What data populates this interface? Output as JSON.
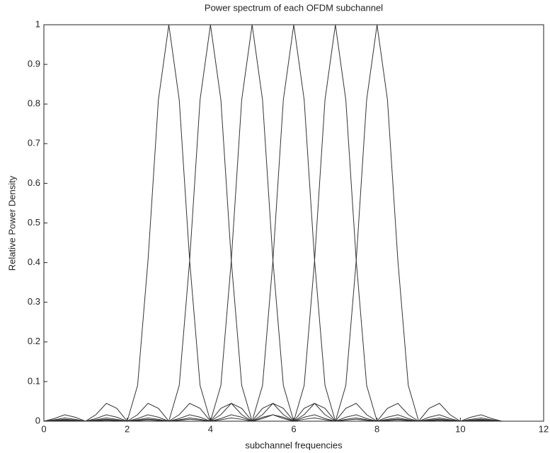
{
  "chart_data": {
    "type": "line",
    "title": "Power spectrum of each OFDM subchannel",
    "xlabel": "subchannel frequencies",
    "ylabel": "Relative Power Density",
    "x": [
      0,
      0.25,
      0.5,
      0.75,
      1,
      1.25,
      1.5,
      1.75,
      2,
      2.25,
      2.5,
      2.75,
      3,
      3.25,
      3.5,
      3.75,
      4,
      4.25,
      4.5,
      4.75,
      5,
      5.25,
      5.5,
      5.75,
      6,
      6.25,
      6.5,
      6.75,
      7,
      7.25,
      7.5,
      7.75,
      8,
      8.25,
      8.5,
      8.75,
      9,
      9.25,
      9.5,
      9.75,
      10,
      10.25,
      10.5,
      10.75,
      11
    ],
    "series": [
      {
        "color": "#333333",
        "values": [
          0,
          0.0067,
          0.0162,
          0.01,
          0,
          0.0165,
          0.045,
          0.0324,
          0,
          0.0901,
          0.4053,
          0.8106,
          1,
          0.8106,
          0.4053,
          0.0901,
          0,
          0.0324,
          0.045,
          0.0165,
          0,
          0.01,
          0.0162,
          0.0067,
          0,
          0.0048,
          0.0083,
          0.0036,
          0,
          0.0028,
          0.005,
          0.0022,
          0,
          0.0018,
          0.0033,
          0.0015,
          0,
          0.0013,
          0.0024,
          0.0011,
          0,
          0.001,
          0.0018,
          0.0008,
          0
        ]
      },
      {
        "color": "#333333",
        "values": [
          0,
          0.0036,
          0.0083,
          0.0048,
          0,
          0.0067,
          0.0162,
          0.01,
          0,
          0.0165,
          0.045,
          0.0324,
          0,
          0.0901,
          0.4053,
          0.8106,
          1,
          0.8106,
          0.4053,
          0.0901,
          0,
          0.0324,
          0.045,
          0.0165,
          0,
          0.01,
          0.0162,
          0.0067,
          0,
          0.0048,
          0.0083,
          0.0036,
          0,
          0.0028,
          0.005,
          0.0022,
          0,
          0.0018,
          0.0033,
          0.0015,
          0,
          0.0013,
          0.0024,
          0.0011,
          0
        ]
      },
      {
        "color": "#333333",
        "values": [
          0,
          0.0022,
          0.005,
          0.0028,
          0,
          0.0036,
          0.0083,
          0.0048,
          0,
          0.0067,
          0.0162,
          0.01,
          0,
          0.0165,
          0.045,
          0.0324,
          0,
          0.0901,
          0.4053,
          0.8106,
          1,
          0.8106,
          0.4053,
          0.0901,
          0,
          0.0324,
          0.045,
          0.0165,
          0,
          0.01,
          0.0162,
          0.0067,
          0,
          0.0048,
          0.0083,
          0.0036,
          0,
          0.0028,
          0.005,
          0.0022,
          0,
          0.0018,
          0.0033,
          0.0015,
          0
        ]
      },
      {
        "color": "#333333",
        "values": [
          0,
          0.0015,
          0.0033,
          0.0018,
          0,
          0.0022,
          0.005,
          0.0028,
          0,
          0.0036,
          0.0083,
          0.0048,
          0,
          0.0067,
          0.0162,
          0.01,
          0,
          0.0165,
          0.045,
          0.0324,
          0,
          0.0901,
          0.4053,
          0.8106,
          1,
          0.8106,
          0.4053,
          0.0901,
          0,
          0.0324,
          0.045,
          0.0165,
          0,
          0.01,
          0.0162,
          0.0067,
          0,
          0.0048,
          0.0083,
          0.0036,
          0,
          0.0028,
          0.005,
          0.0022,
          0
        ]
      },
      {
        "color": "#333333",
        "values": [
          0,
          0.0011,
          0.0024,
          0.0013,
          0,
          0.0015,
          0.0033,
          0.0018,
          0,
          0.0022,
          0.005,
          0.0028,
          0,
          0.0036,
          0.0083,
          0.0048,
          0,
          0.0067,
          0.0162,
          0.01,
          0,
          0.0165,
          0.045,
          0.0324,
          0,
          0.0901,
          0.4053,
          0.8106,
          1,
          0.8106,
          0.4053,
          0.0901,
          0,
          0.0324,
          0.045,
          0.0165,
          0,
          0.01,
          0.0162,
          0.0067,
          0,
          0.0048,
          0.0083,
          0.0036,
          0
        ]
      },
      {
        "color": "#333333",
        "values": [
          0,
          0.0008,
          0.0018,
          0.001,
          0,
          0.0011,
          0.0024,
          0.0013,
          0,
          0.0015,
          0.0033,
          0.0018,
          0,
          0.0022,
          0.005,
          0.0028,
          0,
          0.0036,
          0.0083,
          0.0048,
          0,
          0.0067,
          0.0162,
          0.01,
          0,
          0.0165,
          0.045,
          0.0324,
          0,
          0.0901,
          0.4053,
          0.8106,
          1,
          0.8106,
          0.4053,
          0.0901,
          0,
          0.0324,
          0.045,
          0.0165,
          0,
          0.01,
          0.0162,
          0.0067,
          0
        ]
      }
    ],
    "xlim": [
      0,
      12
    ],
    "xticks": [
      0,
      2,
      4,
      6,
      8,
      10,
      12
    ],
    "ylim": [
      0,
      1
    ],
    "yticks": [
      0,
      0.1,
      0.2,
      0.3,
      0.4,
      0.5,
      0.6,
      0.7,
      0.8,
      0.9,
      1
    ],
    "grid": false
  }
}
